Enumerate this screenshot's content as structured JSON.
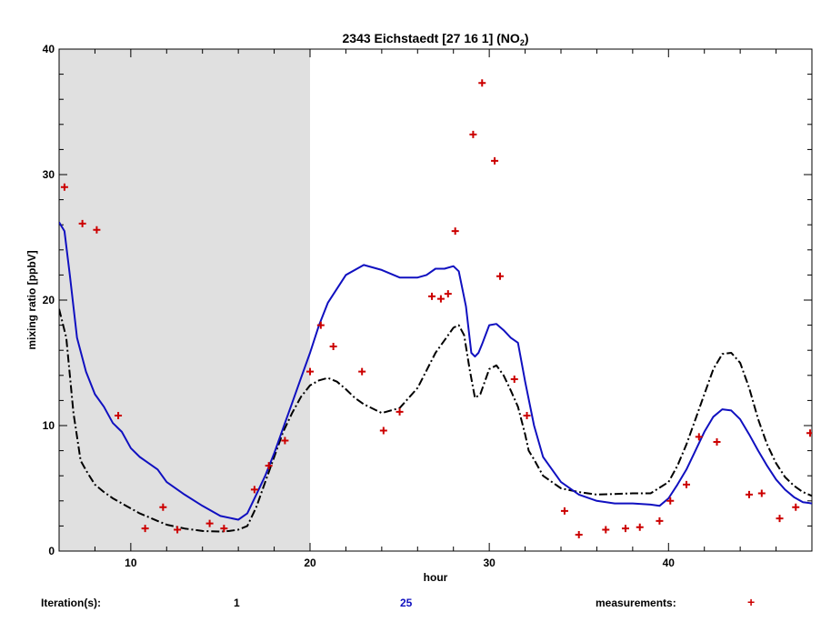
{
  "chart_data": {
    "type": "line",
    "title": "2343 Eichstaedt  [27 16 1]  (NO",
    "title_subscript": "2",
    "title_suffix": ")",
    "xlabel": "hour",
    "ylabel": "mixing ratio [ppbV]",
    "xlim": [
      6,
      48
    ],
    "ylim": [
      0,
      40
    ],
    "x_ticks": [
      10,
      20,
      30,
      40
    ],
    "y_ticks": [
      0,
      10,
      20,
      30,
      40
    ],
    "shaded_region": [
      6,
      20
    ],
    "grid": false,
    "series": [
      {
        "name": "1",
        "style": "dash-dot",
        "color": "#000000",
        "x": [
          6.0,
          6.4,
          6.8,
          7.2,
          7.6,
          8.0,
          8.5,
          9.0,
          9.5,
          10.0,
          10.5,
          11.0,
          11.5,
          12.0,
          13.0,
          14.0,
          15.0,
          15.5,
          16.0,
          16.5,
          17.0,
          17.5,
          18.0,
          18.5,
          19.0,
          19.5,
          20.0,
          20.5,
          21.0,
          21.5,
          22.0,
          22.5,
          23.0,
          24.0,
          25.0,
          26.0,
          27.0,
          27.5,
          28.0,
          28.3,
          28.6,
          28.9,
          29.2,
          29.5,
          30.0,
          30.4,
          30.8,
          31.2,
          31.6,
          32.0,
          32.2,
          32.5,
          33.0,
          34.0,
          35.0,
          36.0,
          37.0,
          38.0,
          39.0,
          40.0,
          40.5,
          41.0,
          41.5,
          42.0,
          42.5,
          43.0,
          43.5,
          44.0,
          44.5,
          45.0,
          45.5,
          46.0,
          46.5,
          47.0,
          47.5,
          48.0
        ],
        "y": [
          19.3,
          17.0,
          11.0,
          7.2,
          6.2,
          5.3,
          4.7,
          4.2,
          3.8,
          3.4,
          3.0,
          2.7,
          2.4,
          2.1,
          1.8,
          1.6,
          1.55,
          1.6,
          1.7,
          2.0,
          3.5,
          5.5,
          7.5,
          9.5,
          11.0,
          12.3,
          13.2,
          13.6,
          13.8,
          13.5,
          12.9,
          12.2,
          11.7,
          11.0,
          11.4,
          13.0,
          15.8,
          16.8,
          17.8,
          18.0,
          17.2,
          14.5,
          12.2,
          12.5,
          14.5,
          14.8,
          14.0,
          12.8,
          11.5,
          9.3,
          8.0,
          7.3,
          6.0,
          5.0,
          4.7,
          4.5,
          4.55,
          4.6,
          4.6,
          5.5,
          6.8,
          8.5,
          10.5,
          12.5,
          14.5,
          15.7,
          15.8,
          15.0,
          13.0,
          10.5,
          8.5,
          7.0,
          5.9,
          5.2,
          4.7,
          4.4
        ]
      },
      {
        "name": "25",
        "style": "solid",
        "color": "#1010c0",
        "x": [
          6.0,
          6.3,
          6.6,
          7.0,
          7.5,
          8.0,
          8.5,
          9.0,
          9.5,
          10.0,
          10.5,
          11.0,
          11.5,
          12.0,
          13.0,
          14.0,
          15.0,
          16.0,
          16.5,
          17.0,
          17.5,
          18.0,
          18.5,
          19.0,
          19.5,
          20.0,
          20.5,
          21.0,
          22.0,
          23.0,
          24.0,
          25.0,
          26.0,
          26.5,
          27.0,
          27.5,
          28.0,
          28.3,
          28.7,
          29.0,
          29.2,
          29.4,
          29.6,
          30.0,
          30.4,
          30.8,
          31.2,
          31.6,
          32.0,
          32.5,
          33.0,
          34.0,
          35.0,
          36.0,
          37.0,
          38.0,
          39.0,
          39.5,
          40.0,
          40.5,
          41.0,
          41.5,
          42.0,
          42.5,
          43.0,
          43.5,
          44.0,
          44.5,
          45.0,
          45.5,
          46.0,
          46.5,
          47.0,
          47.5,
          48.0
        ],
        "y": [
          26.2,
          25.5,
          22.0,
          17.0,
          14.3,
          12.5,
          11.5,
          10.2,
          9.5,
          8.2,
          7.5,
          7.0,
          6.5,
          5.5,
          4.5,
          3.6,
          2.8,
          2.5,
          3.0,
          4.5,
          6.0,
          7.8,
          9.8,
          11.8,
          13.8,
          15.8,
          18.0,
          19.8,
          22.0,
          22.8,
          22.4,
          21.8,
          21.8,
          22.0,
          22.5,
          22.5,
          22.7,
          22.3,
          19.5,
          15.8,
          15.5,
          15.8,
          16.5,
          18.0,
          18.1,
          17.6,
          17.0,
          16.6,
          13.5,
          10.0,
          7.5,
          5.5,
          4.5,
          4.0,
          3.8,
          3.8,
          3.7,
          3.6,
          4.2,
          5.3,
          6.5,
          8.0,
          9.5,
          10.7,
          11.3,
          11.2,
          10.5,
          9.3,
          8.0,
          6.8,
          5.7,
          4.9,
          4.3,
          3.9,
          3.8
        ]
      },
      {
        "name": "measurements",
        "style": "marker",
        "marker": "+",
        "color": "#cc0000",
        "x": [
          6.3,
          7.3,
          8.1,
          9.3,
          10.8,
          11.8,
          12.6,
          14.4,
          15.2,
          16.9,
          17.7,
          18.6,
          20.0,
          20.6,
          21.3,
          22.9,
          24.1,
          25.0,
          26.8,
          27.3,
          27.7,
          28.1,
          29.1,
          29.6,
          30.3,
          30.6,
          31.4,
          32.1,
          34.2,
          35.0,
          36.5,
          37.6,
          38.4,
          39.5,
          40.1,
          41.0,
          41.7,
          42.7,
          44.5,
          45.2,
          46.2,
          47.1,
          47.9
        ],
        "y": [
          29.0,
          26.1,
          25.6,
          10.8,
          1.8,
          3.5,
          1.7,
          2.2,
          1.8,
          4.9,
          6.8,
          8.8,
          14.3,
          18.0,
          16.3,
          14.3,
          9.6,
          11.1,
          20.3,
          20.1,
          20.5,
          25.5,
          33.2,
          37.3,
          31.1,
          21.9,
          13.7,
          10.8,
          3.2,
          1.3,
          1.7,
          1.8,
          1.9,
          2.4,
          4.0,
          5.3,
          9.1,
          8.7,
          4.5,
          4.6,
          2.6,
          3.5,
          9.4
        ]
      }
    ]
  },
  "legend": {
    "iterations_label": "Iteration(s):",
    "iter_first": "1",
    "iter_last": "25",
    "iter_last_color": "#1010c0",
    "measurements_label": "measurements:",
    "measurements_symbol": "+"
  }
}
